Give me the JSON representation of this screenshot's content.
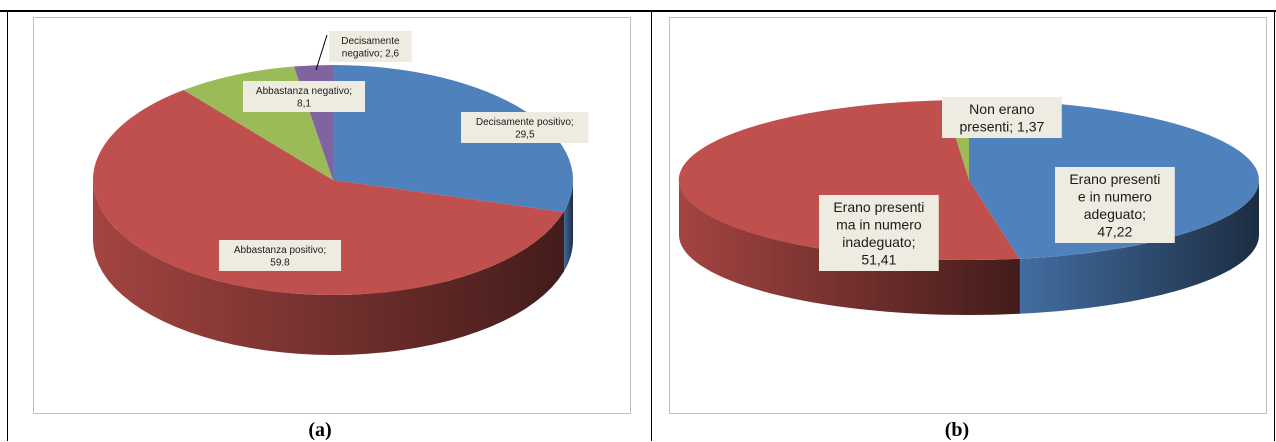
{
  "chart_data": [
    {
      "type": "pie",
      "caption": "(a)",
      "slices": [
        {
          "label": "Decisamente positivo",
          "value": 29.5,
          "display": "29,5",
          "color": "#4f81bd"
        },
        {
          "label": "Abbastanza positivo",
          "value": 59.8,
          "display": "59.8",
          "color": "#c0504d"
        },
        {
          "label": "Abbastanza negativo",
          "value": 8.1,
          "display": "8,1",
          "color": "#9bbb59"
        },
        {
          "label": "Decisamente negativo",
          "value": 2.6,
          "display": "2,6",
          "color": "#8064a2"
        }
      ]
    },
    {
      "type": "pie",
      "caption": "(b)",
      "slices": [
        {
          "label": "Erano presenti e in numero adeguato",
          "value": 47.22,
          "display": "47,22",
          "color": "#4f81bd"
        },
        {
          "label": "Erano presenti ma in numero inadeguato",
          "value": 51.41,
          "display": "51,41",
          "color": "#c0504d"
        },
        {
          "label": "Non erano presenti",
          "value": 1.37,
          "display": "1,37",
          "color": "#9bbb59"
        }
      ]
    }
  ]
}
